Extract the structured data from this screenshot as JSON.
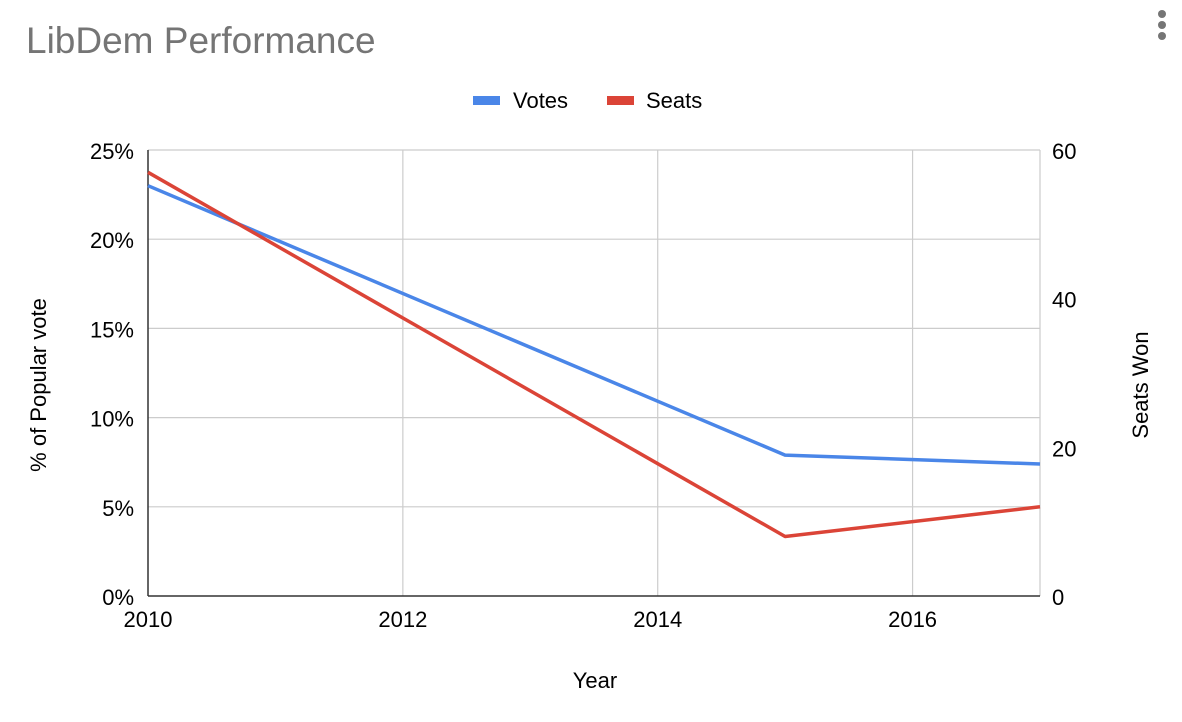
{
  "chart_data": {
    "type": "line",
    "title": "LibDem Performance",
    "xlabel": "Year",
    "ylabel_left": "% of Popular vote",
    "ylabel_right": "Seats Won",
    "x_ticks": [
      "2010",
      "2012",
      "2014",
      "2016"
    ],
    "x_range": [
      2010,
      2017
    ],
    "y_left_ticks": [
      "0%",
      "5%",
      "10%",
      "15%",
      "20%",
      "25%"
    ],
    "y_left_range": [
      0,
      25
    ],
    "y_right_ticks": [
      "0",
      "20",
      "40",
      "60"
    ],
    "y_right_range": [
      0,
      60
    ],
    "grid": true,
    "legend_position": "top",
    "series": [
      {
        "name": "Votes",
        "axis": "left",
        "color": "#4a86e8",
        "x": [
          2010,
          2015,
          2017
        ],
        "y": [
          23.0,
          7.9,
          7.4
        ]
      },
      {
        "name": "Seats",
        "axis": "right",
        "color": "#db4437",
        "x": [
          2010,
          2015,
          2017
        ],
        "y": [
          57,
          8,
          12
        ]
      }
    ]
  },
  "menu_icon": "more-vert-icon"
}
